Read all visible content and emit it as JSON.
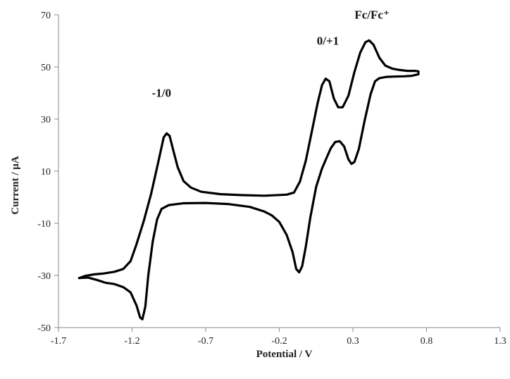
{
  "chart_data": {
    "type": "line",
    "title": "",
    "xlabel": "Potential / V",
    "ylabel": "Current / μA",
    "xlim": [
      -1.7,
      1.3
    ],
    "ylim": [
      -50,
      70
    ],
    "x_ticks": [
      "-1.7",
      "-1.2",
      "-0.7",
      "-0.2",
      "0.3",
      "0.8",
      "1.3"
    ],
    "y_ticks": [
      "70",
      "50",
      "30",
      "10",
      "-10",
      "-30",
      "-50"
    ],
    "grid": false,
    "legend": "none",
    "line_color": "#000000",
    "annotations": [
      {
        "text": "-1/0",
        "x": -1.0,
        "y": 38.5
      },
      {
        "text": "0/+1",
        "x": 0.13,
        "y": 58.5
      },
      {
        "text": "Fc/Fc⁺",
        "x": 0.43,
        "y": 68.5
      }
    ],
    "series": [
      {
        "points": [
          [
            -1.56,
            -31
          ],
          [
            -1.52,
            -30.2
          ],
          [
            -1.46,
            -29.6
          ],
          [
            -1.4,
            -29.3
          ],
          [
            -1.32,
            -28.6
          ],
          [
            -1.26,
            -27.5
          ],
          [
            -1.21,
            -24.5
          ],
          [
            -1.17,
            -18
          ],
          [
            -1.12,
            -9
          ],
          [
            -1.07,
            1.5
          ],
          [
            -1.02,
            14
          ],
          [
            -0.985,
            23
          ],
          [
            -0.965,
            24.5
          ],
          [
            -0.945,
            23.5
          ],
          [
            -0.92,
            18
          ],
          [
            -0.89,
            11.5
          ],
          [
            -0.85,
            6.2
          ],
          [
            -0.8,
            3.7
          ],
          [
            -0.73,
            2.1
          ],
          [
            -0.6,
            1.2
          ],
          [
            -0.45,
            0.8
          ],
          [
            -0.3,
            0.6
          ],
          [
            -0.15,
            1.0
          ],
          [
            -0.1,
            1.8
          ],
          [
            -0.06,
            6
          ],
          [
            -0.02,
            14
          ],
          [
            0.02,
            25
          ],
          [
            0.06,
            36
          ],
          [
            0.09,
            43
          ],
          [
            0.115,
            45.5
          ],
          [
            0.14,
            44.5
          ],
          [
            0.17,
            38
          ],
          [
            0.2,
            34.5
          ],
          [
            0.23,
            34.5
          ],
          [
            0.27,
            39
          ],
          [
            0.31,
            48
          ],
          [
            0.35,
            55.5
          ],
          [
            0.385,
            59.5
          ],
          [
            0.41,
            60.2
          ],
          [
            0.44,
            58.5
          ],
          [
            0.48,
            53.5
          ],
          [
            0.52,
            50.5
          ],
          [
            0.57,
            49.3
          ],
          [
            0.62,
            48.8
          ],
          [
            0.67,
            48.5
          ],
          [
            0.72,
            48.5
          ],
          [
            0.745,
            48.3
          ],
          [
            0.745,
            47.2
          ],
          [
            0.7,
            46.6
          ],
          [
            0.65,
            46.4
          ],
          [
            0.58,
            46.3
          ],
          [
            0.53,
            46.2
          ],
          [
            0.48,
            45.7
          ],
          [
            0.45,
            44.5
          ],
          [
            0.42,
            39.5
          ],
          [
            0.38,
            29.5
          ],
          [
            0.34,
            18.5
          ],
          [
            0.31,
            13.5
          ],
          [
            0.29,
            12.8
          ],
          [
            0.27,
            14.5
          ],
          [
            0.24,
            19.5
          ],
          [
            0.21,
            21.5
          ],
          [
            0.18,
            21.2
          ],
          [
            0.15,
            18.8
          ],
          [
            0.12,
            15
          ],
          [
            0.09,
            11
          ],
          [
            0.05,
            4
          ],
          [
            0.01,
            -8
          ],
          [
            -0.02,
            -19
          ],
          [
            -0.045,
            -26.5
          ],
          [
            -0.065,
            -28.8
          ],
          [
            -0.085,
            -27.5
          ],
          [
            -0.11,
            -21
          ],
          [
            -0.15,
            -14.5
          ],
          [
            -0.2,
            -9.5
          ],
          [
            -0.25,
            -7
          ],
          [
            -0.3,
            -5.5
          ],
          [
            -0.4,
            -3.7
          ],
          [
            -0.55,
            -2.6
          ],
          [
            -0.7,
            -2.2
          ],
          [
            -0.85,
            -2.3
          ],
          [
            -0.95,
            -3.0
          ],
          [
            -1.0,
            -4.5
          ],
          [
            -1.03,
            -8.5
          ],
          [
            -1.06,
            -17
          ],
          [
            -1.09,
            -30
          ],
          [
            -1.11,
            -42
          ],
          [
            -1.13,
            -46.8
          ],
          [
            -1.145,
            -46.2
          ],
          [
            -1.17,
            -41.5
          ],
          [
            -1.21,
            -36.5
          ],
          [
            -1.26,
            -34.5
          ],
          [
            -1.32,
            -33.3
          ],
          [
            -1.38,
            -32.8
          ],
          [
            -1.44,
            -31.7
          ],
          [
            -1.5,
            -30.8
          ],
          [
            -1.56,
            -31
          ]
        ]
      }
    ]
  }
}
